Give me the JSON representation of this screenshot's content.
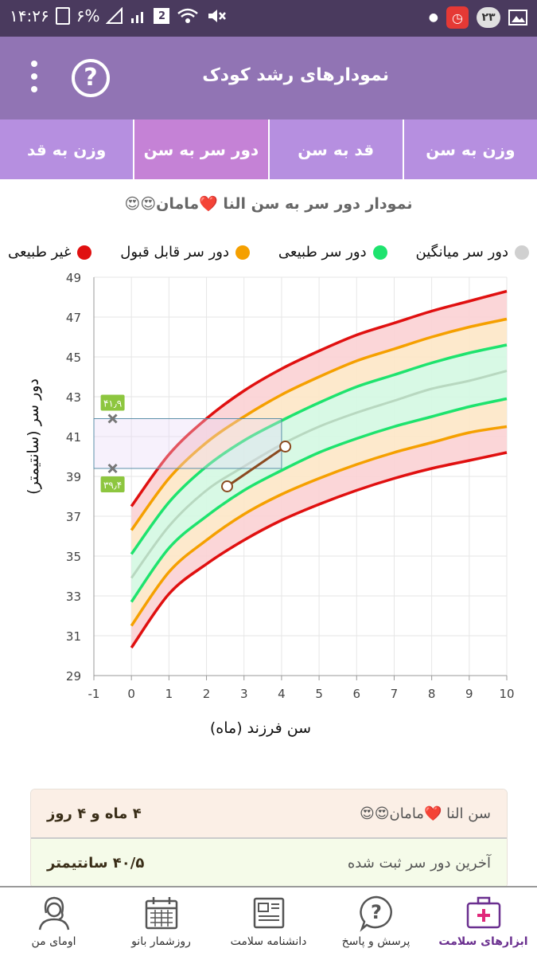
{
  "status_bar": {
    "time": "۱۴:۲۶",
    "battery": "۶%",
    "sim_badge": "2",
    "notif_count": "۲۳"
  },
  "app_bar": {
    "title": "نمودارهای رشد کودک"
  },
  "tabs": [
    {
      "label": "وزن به سن",
      "active": false
    },
    {
      "label": "قد به سن",
      "active": false
    },
    {
      "label": "دور سر به سن",
      "active": true
    },
    {
      "label": "وزن به قد",
      "active": false
    }
  ],
  "chart_title": "نمودار دور سر به سن النا ❤️مامان😍😍",
  "legend": [
    {
      "label": "غیر طبیعی",
      "color": "#e01010"
    },
    {
      "label": "دور سر قابل قبول",
      "color": "#f5a000"
    },
    {
      "label": "دور سر طبیعی",
      "color": "#1ee36e"
    },
    {
      "label": "دور سر میانگین",
      "color": "#d0d0d0"
    }
  ],
  "chart_data": {
    "type": "line",
    "xlabel": "سن فرزند (ماه)",
    "ylabel": "دور سر (سانتیمتر)",
    "xlim": [
      -1,
      10
    ],
    "ylim": [
      29,
      49
    ],
    "x_ticks": [
      "-1",
      "0",
      "1",
      "2",
      "3",
      "4",
      "5",
      "6",
      "7",
      "8",
      "9",
      "10"
    ],
    "y_ticks": [
      "29",
      "31",
      "33",
      "35",
      "37",
      "39",
      "41",
      "43",
      "45",
      "47",
      "49"
    ],
    "x": [
      0,
      1,
      2,
      3,
      4,
      5,
      6,
      7,
      8,
      9,
      10
    ],
    "series": [
      {
        "color": "#e01010",
        "values": [
          30.4,
          33.1,
          34.6,
          35.8,
          36.8,
          37.6,
          38.3,
          38.9,
          39.4,
          39.8,
          40.2
        ]
      },
      {
        "color": "#f5a000",
        "values": [
          31.5,
          34.2,
          35.8,
          37.1,
          38.1,
          38.9,
          39.6,
          40.2,
          40.7,
          41.2,
          41.5
        ]
      },
      {
        "color": "#1ee36e",
        "values": [
          32.7,
          35.4,
          37.0,
          38.3,
          39.3,
          40.2,
          40.9,
          41.5,
          42.0,
          42.5,
          42.9
        ]
      },
      {
        "color": "#b8d8c0",
        "values": [
          33.9,
          36.5,
          38.3,
          39.5,
          40.6,
          41.5,
          42.2,
          42.8,
          43.4,
          43.8,
          44.3
        ]
      },
      {
        "color": "#1ee36e",
        "values": [
          35.1,
          37.7,
          39.5,
          40.8,
          41.8,
          42.7,
          43.5,
          44.1,
          44.7,
          45.2,
          45.6
        ]
      },
      {
        "color": "#f5a000",
        "values": [
          36.3,
          38.9,
          40.7,
          42.0,
          43.1,
          44.0,
          44.8,
          45.4,
          46.0,
          46.5,
          46.9
        ]
      },
      {
        "color": "#e01010",
        "values": [
          37.5,
          40.1,
          41.9,
          43.3,
          44.4,
          45.3,
          46.1,
          46.7,
          47.3,
          47.8,
          48.3
        ]
      }
    ],
    "child_points": [
      {
        "x": 2.55,
        "y": 38.5
      },
      {
        "x": 4.1,
        "y": 40.5
      }
    ],
    "range_box": {
      "x1": -1,
      "x2": 4,
      "y_low": 39.4,
      "y_high": 41.9,
      "label_high": "۴۱٫۹",
      "label_low": "۳۹٫۴",
      "marker_x": -0.5
    }
  },
  "info_card": {
    "age_label": "سن النا ❤️مامان😍😍",
    "age_value": "۴ ماه و ۴ روز",
    "last_label": "آخرین دور سر ثبت شده",
    "last_value": "۴۰/۵ سانتیمتر"
  },
  "bottom_nav": [
    {
      "label": "ابزارهای سلامت",
      "icon": "medical-kit-icon",
      "active": true
    },
    {
      "label": "پرسش و پاسخ",
      "icon": "question-bubble-icon",
      "active": false
    },
    {
      "label": "دانشنامه سلامت",
      "icon": "newspaper-icon",
      "active": false
    },
    {
      "label": "روزشمار بانو",
      "icon": "calendar-icon",
      "active": false
    },
    {
      "label": "اومای من",
      "icon": "woman-avatar-icon",
      "active": false
    }
  ]
}
